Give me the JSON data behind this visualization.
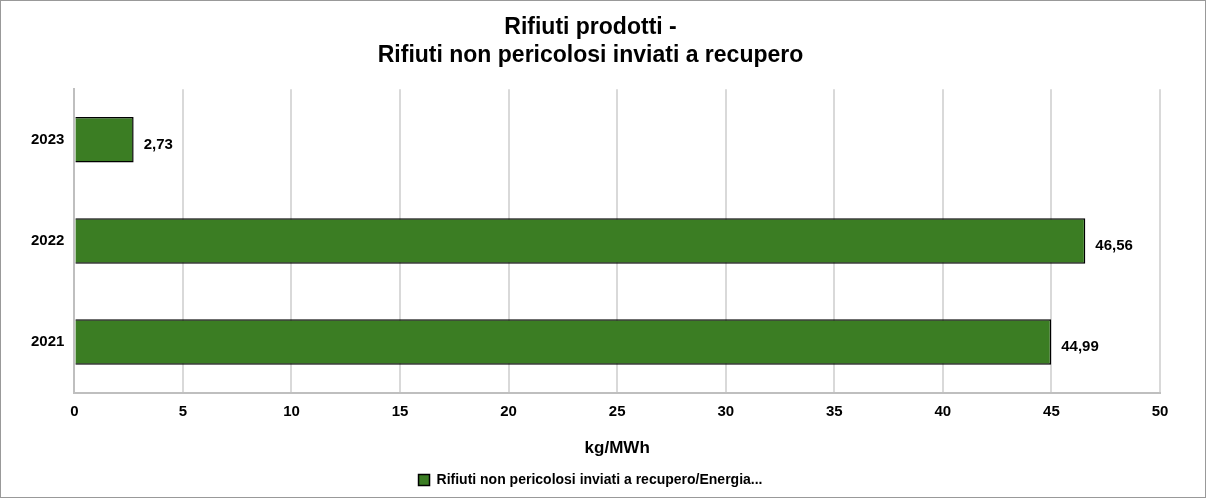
{
  "chart_data": {
    "type": "bar",
    "orientation": "horizontal",
    "title": "Rifiuti prodotti -\nRifiuti non pericolosi inviati a recupero",
    "xlabel": "kg/MWh",
    "categories": [
      "2023",
      "2022",
      "2021"
    ],
    "series": [
      {
        "name": "Rifiuti non pericolosi inviati a recupero/Energia...",
        "color": "#3b7d23",
        "values": [
          2.73,
          46.56,
          44.99
        ],
        "value_labels": [
          "2,73",
          "46,56",
          "44,99"
        ]
      }
    ],
    "xlim": [
      0,
      50
    ],
    "xticks": [
      0,
      5,
      10,
      15,
      20,
      25,
      30,
      35,
      40,
      45,
      50
    ],
    "grid": "x",
    "legend": "bottom"
  }
}
